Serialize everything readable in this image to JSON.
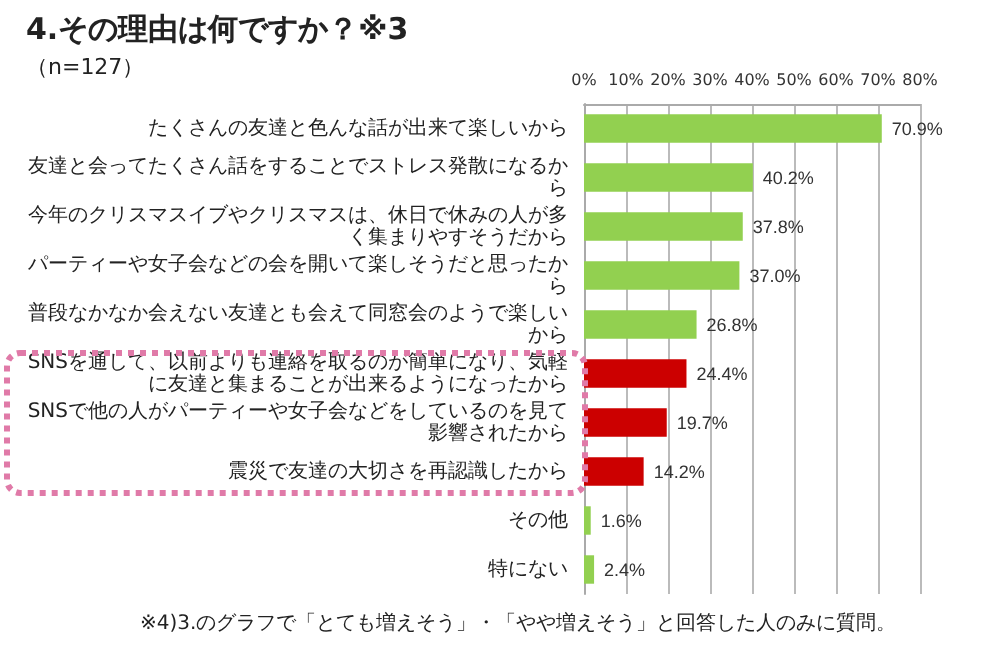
{
  "chart_data": {
    "type": "bar",
    "orientation": "horizontal",
    "title": "4.その理由は何ですか？※3",
    "subtitle": "（n=127）",
    "categories": [
      "たくさんの友達と色んな話が出来て楽しいから",
      "友達と会ってたくさん話をすることでストレス発散になるから",
      "今年のクリスマスイブやクリスマスは、休日で休みの人が多く集まりやすそうだから",
      "パーティーや女子会などの会を開いて楽しそうだと思ったから",
      "普段なかなか会えない友達とも会えて同窓会のようで楽しいから",
      "SNSを通して、以前よりも連絡を取るのが簡単になり、気軽に友達と集まることが出来るようになったから",
      "SNSで他の人がパーティーや女子会などをしているのを見て影響されたから",
      "震災で友達の大切さを再認識したから",
      "その他",
      "特にない"
    ],
    "values": [
      70.9,
      40.2,
      37.8,
      37.0,
      26.8,
      24.4,
      19.7,
      14.2,
      1.6,
      2.4
    ],
    "value_labels": [
      "70.9%",
      "40.2%",
      "37.8%",
      "37.0%",
      "26.8%",
      "24.4%",
      "19.7%",
      "14.2%",
      "1.6%",
      "2.4%"
    ],
    "colors": [
      "#92d050",
      "#92d050",
      "#92d050",
      "#92d050",
      "#92d050",
      "#cc0000",
      "#cc0000",
      "#cc0000",
      "#92d050",
      "#92d050"
    ],
    "xlim": [
      0,
      80
    ],
    "xticks": [
      {
        "value": 0,
        "label": "0%"
      },
      {
        "value": 10,
        "label": "10%"
      },
      {
        "value": 20,
        "label": "20%"
      },
      {
        "value": 30,
        "label": "30%"
      },
      {
        "value": 40,
        "label": "40%"
      },
      {
        "value": 50,
        "label": "50%"
      },
      {
        "value": 60,
        "label": "60%"
      },
      {
        "value": 70,
        "label": "70%"
      },
      {
        "value": 80,
        "label": "80%"
      }
    ],
    "grid": "x",
    "annotations": [
      "※4)3.のグラフで「とても増えそう」・「やや増えそう」と回答した人のみに質問。"
    ]
  }
}
